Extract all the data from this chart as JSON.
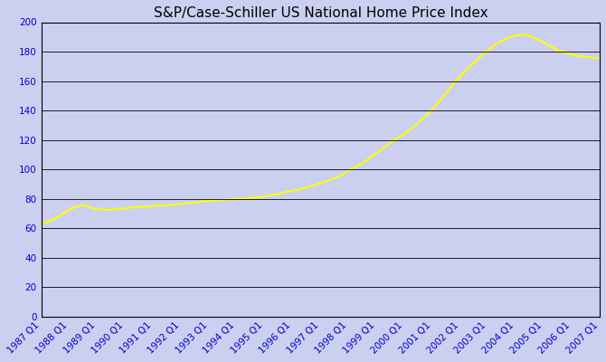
{
  "title": "S&P/Case-Schiller US National Home Price Index",
  "background_color": "#ccd0f0",
  "line_color": "#ffff00",
  "line_width": 1.5,
  "ylim": [
    0,
    200
  ],
  "yticks": [
    0,
    20,
    40,
    60,
    80,
    100,
    120,
    140,
    160,
    180,
    200
  ],
  "x_labels": [
    "1987 Q1",
    "1988 Q1",
    "1989 Q1",
    "1990 Q1",
    "1991 Q1",
    "1992 Q1",
    "1993 Q1",
    "1994 Q1",
    "1995 Q1",
    "1996 Q1",
    "1997 Q1",
    "1998 Q1",
    "1999 Q1",
    "2000 Q1",
    "2001 Q1",
    "2002 Q1",
    "2003 Q1",
    "2004 Q1",
    "2005 Q1",
    "2006 Q1",
    "2007 Q1"
  ],
  "values": [
    63.0,
    64.5,
    66.5,
    69.5,
    72.5,
    74.5,
    75.5,
    74.0,
    73.0,
    72.5,
    72.5,
    73.0,
    73.5,
    74.0,
    74.5,
    74.5,
    75.0,
    75.5,
    75.5,
    76.0,
    76.5,
    77.0,
    77.5,
    78.0,
    78.5,
    79.0,
    79.0,
    79.5,
    80.0,
    80.0,
    80.5,
    81.0,
    81.5,
    82.5,
    83.5,
    84.5,
    85.5,
    86.5,
    87.5,
    89.0,
    90.5,
    92.0,
    94.0,
    96.0,
    99.0,
    101.5,
    104.0,
    107.5,
    111.0,
    114.5,
    118.0,
    121.0,
    124.0,
    127.5,
    131.5,
    136.0,
    140.5,
    146.0,
    152.0,
    158.0,
    163.0,
    168.0,
    172.5,
    177.0,
    181.0,
    184.5,
    187.5,
    189.5,
    191.0,
    191.5,
    190.5,
    188.5,
    186.0,
    183.5,
    181.0,
    179.5,
    178.0,
    177.0,
    176.5,
    176.0,
    175.5
  ],
  "grid_color": "#000000",
  "tick_color": "#0000cc",
  "title_color": "#000000",
  "title_fontsize": 11,
  "tick_label_fontsize": 7.5,
  "axes_linewidth": 0.8
}
